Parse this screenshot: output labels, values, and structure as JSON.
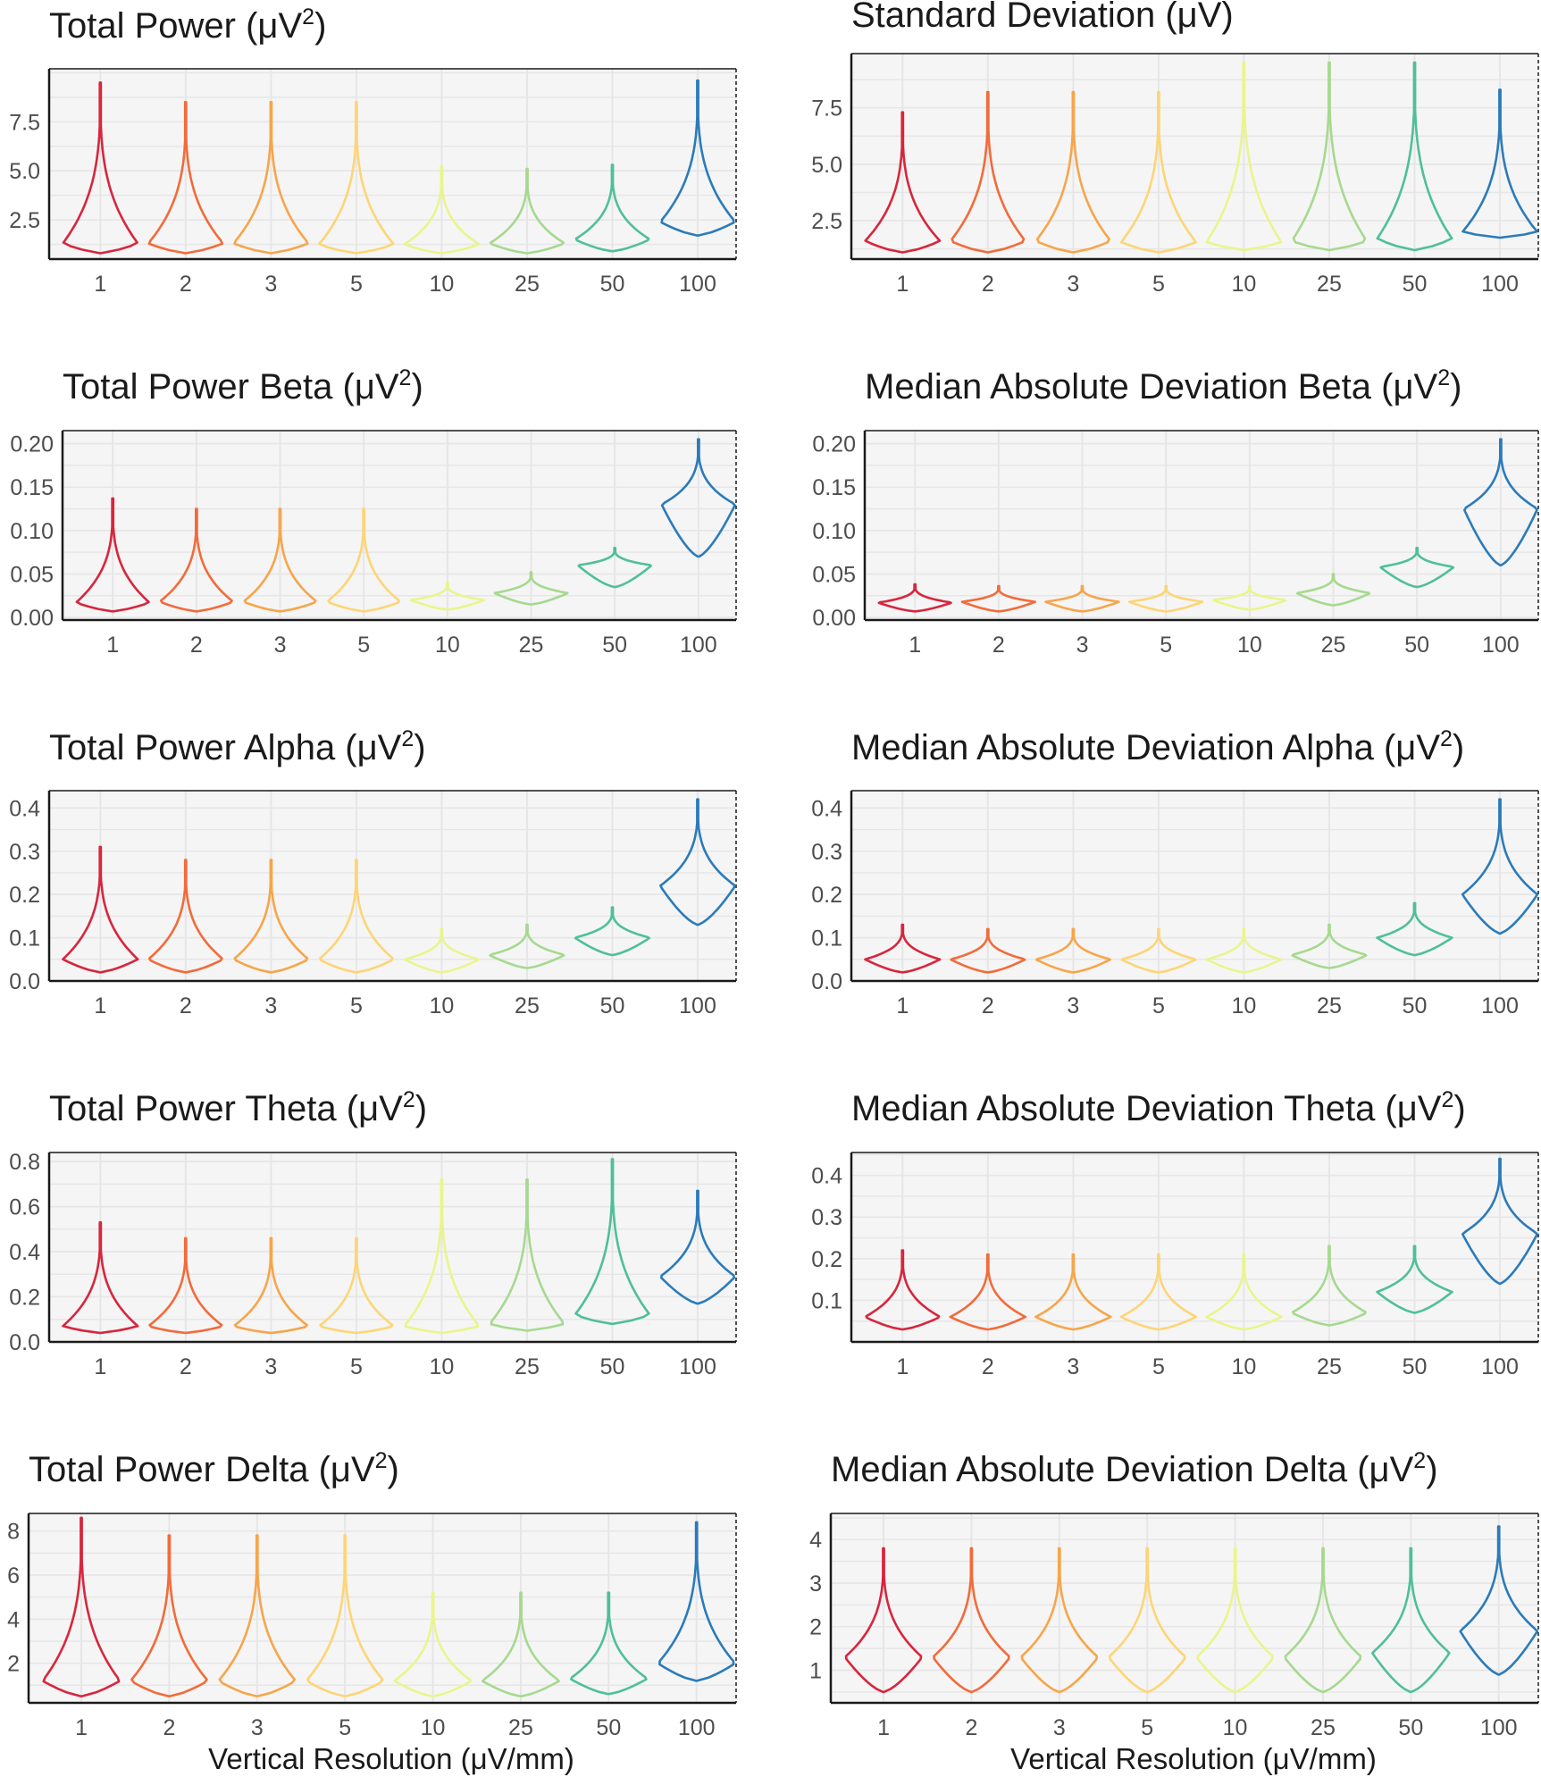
{
  "chart_data": [
    {
      "type": "violin",
      "title": "Total Power (μV²)",
      "title_text": "Total Power (μV",
      "title_sup": "2",
      "title_tail": ")",
      "xlabel": "",
      "categories": [
        "1",
        "2",
        "3",
        "5",
        "10",
        "25",
        "50",
        "100"
      ],
      "ylim": [
        0.5,
        10.2
      ],
      "yticks": [
        2.5,
        5.0,
        7.5
      ],
      "ytick_labels": [
        "2.5",
        "5.0",
        "7.5"
      ],
      "series": [
        {
          "min": 0.8,
          "max": 9.5,
          "median": 1.3
        },
        {
          "min": 0.8,
          "max": 8.5,
          "median": 1.3
        },
        {
          "min": 0.8,
          "max": 8.5,
          "median": 1.3
        },
        {
          "min": 0.8,
          "max": 8.5,
          "median": 1.25
        },
        {
          "min": 0.8,
          "max": 5.2,
          "median": 1.25
        },
        {
          "min": 0.8,
          "max": 5.1,
          "median": 1.3
        },
        {
          "min": 0.9,
          "max": 5.3,
          "median": 1.5
        },
        {
          "min": 1.7,
          "max": 9.6,
          "median": 2.4
        }
      ]
    },
    {
      "type": "violin",
      "title": "Standard Deviation (μV)",
      "title_text": "Standard Deviation (μV)",
      "title_sup": "",
      "title_tail": "",
      "xlabel": "",
      "categories": [
        "1",
        "2",
        "3",
        "5",
        "10",
        "25",
        "50",
        "100"
      ],
      "ylim": [
        0.8,
        9.9
      ],
      "yticks": [
        2.5,
        5.0,
        7.5
      ],
      "ytick_labels": [
        "2.5",
        "5.0",
        "7.5"
      ],
      "series": [
        {
          "min": 1.1,
          "max": 7.3,
          "median": 1.6
        },
        {
          "min": 1.1,
          "max": 8.2,
          "median": 1.6
        },
        {
          "min": 1.1,
          "max": 8.2,
          "median": 1.6
        },
        {
          "min": 1.1,
          "max": 8.2,
          "median": 1.55
        },
        {
          "min": 1.2,
          "max": 9.5,
          "median": 1.55
        },
        {
          "min": 1.2,
          "max": 9.5,
          "median": 1.6
        },
        {
          "min": 1.2,
          "max": 9.5,
          "median": 1.7
        },
        {
          "min": 1.75,
          "max": 8.3,
          "median": 2.0
        }
      ]
    },
    {
      "type": "violin",
      "title": "Total Power Beta (μV²)",
      "title_text": "Total Power Beta (μV",
      "title_sup": "2",
      "title_tail": ")",
      "xlabel": "",
      "categories": [
        "1",
        "2",
        "3",
        "5",
        "10",
        "25",
        "50",
        "100"
      ],
      "ylim": [
        -0.003,
        0.215
      ],
      "yticks": [
        0.0,
        0.05,
        0.1,
        0.15,
        0.2
      ],
      "ytick_labels": [
        "0.00",
        "0.05",
        "0.10",
        "0.15",
        "0.20"
      ],
      "series": [
        {
          "min": 0.007,
          "max": 0.137,
          "median": 0.017
        },
        {
          "min": 0.007,
          "max": 0.125,
          "median": 0.018
        },
        {
          "min": 0.007,
          "max": 0.125,
          "median": 0.018
        },
        {
          "min": 0.007,
          "max": 0.125,
          "median": 0.018
        },
        {
          "min": 0.009,
          "max": 0.04,
          "median": 0.02
        },
        {
          "min": 0.015,
          "max": 0.052,
          "median": 0.028
        },
        {
          "min": 0.035,
          "max": 0.08,
          "median": 0.06
        },
        {
          "min": 0.07,
          "max": 0.205,
          "median": 0.13
        }
      ]
    },
    {
      "type": "violin",
      "title": "Median Absolute Deviation Beta (μV²)",
      "title_text": "Median Absolute Deviation Beta (μV",
      "title_sup": "2",
      "title_tail": ")",
      "xlabel": "",
      "categories": [
        "1",
        "2",
        "3",
        "5",
        "10",
        "25",
        "50",
        "100"
      ],
      "ylim": [
        -0.003,
        0.215
      ],
      "yticks": [
        0.0,
        0.05,
        0.1,
        0.15,
        0.2
      ],
      "ytick_labels": [
        "0.00",
        "0.05",
        "0.10",
        "0.15",
        "0.20"
      ],
      "series": [
        {
          "min": 0.007,
          "max": 0.038,
          "median": 0.017
        },
        {
          "min": 0.007,
          "max": 0.036,
          "median": 0.018
        },
        {
          "min": 0.007,
          "max": 0.036,
          "median": 0.018
        },
        {
          "min": 0.007,
          "max": 0.036,
          "median": 0.018
        },
        {
          "min": 0.009,
          "max": 0.036,
          "median": 0.02
        },
        {
          "min": 0.014,
          "max": 0.05,
          "median": 0.028
        },
        {
          "min": 0.035,
          "max": 0.08,
          "median": 0.058
        },
        {
          "min": 0.06,
          "max": 0.205,
          "median": 0.125
        }
      ]
    },
    {
      "type": "violin",
      "title": "Total Power Alpha (μV²)",
      "title_text": "Total Power Alpha (μV",
      "title_sup": "2",
      "title_tail": ")",
      "xlabel": "",
      "categories": [
        "1",
        "2",
        "3",
        "5",
        "10",
        "25",
        "50",
        "100"
      ],
      "ylim": [
        0.0,
        0.44
      ],
      "yticks": [
        0.0,
        0.1,
        0.2,
        0.3,
        0.4
      ],
      "ytick_labels": [
        "0.0",
        "0.1",
        "0.2",
        "0.3",
        "0.4"
      ],
      "series": [
        {
          "min": 0.02,
          "max": 0.31,
          "median": 0.05
        },
        {
          "min": 0.02,
          "max": 0.28,
          "median": 0.05
        },
        {
          "min": 0.02,
          "max": 0.28,
          "median": 0.05
        },
        {
          "min": 0.02,
          "max": 0.28,
          "median": 0.05
        },
        {
          "min": 0.02,
          "max": 0.12,
          "median": 0.05
        },
        {
          "min": 0.03,
          "max": 0.13,
          "median": 0.06
        },
        {
          "min": 0.06,
          "max": 0.17,
          "median": 0.1
        },
        {
          "min": 0.13,
          "max": 0.42,
          "median": 0.22
        }
      ]
    },
    {
      "type": "violin",
      "title": "Median Absolute Deviation Alpha (μV²)",
      "title_text": "Median Absolute Deviation Alpha (μV",
      "title_sup": "2",
      "title_tail": ")",
      "xlabel": "",
      "categories": [
        "1",
        "2",
        "3",
        "5",
        "10",
        "25",
        "50",
        "100"
      ],
      "ylim": [
        0.0,
        0.44
      ],
      "yticks": [
        0.0,
        0.1,
        0.2,
        0.3,
        0.4
      ],
      "ytick_labels": [
        "0.0",
        "0.1",
        "0.2",
        "0.3",
        "0.4"
      ],
      "series": [
        {
          "min": 0.02,
          "max": 0.13,
          "median": 0.05
        },
        {
          "min": 0.02,
          "max": 0.12,
          "median": 0.05
        },
        {
          "min": 0.02,
          "max": 0.12,
          "median": 0.05
        },
        {
          "min": 0.02,
          "max": 0.12,
          "median": 0.05
        },
        {
          "min": 0.02,
          "max": 0.12,
          "median": 0.05
        },
        {
          "min": 0.03,
          "max": 0.13,
          "median": 0.06
        },
        {
          "min": 0.06,
          "max": 0.18,
          "median": 0.1
        },
        {
          "min": 0.11,
          "max": 0.42,
          "median": 0.2
        }
      ]
    },
    {
      "type": "violin",
      "title": "Total Power Theta (μV²)",
      "title_text": "Total Power Theta (μV",
      "title_sup": "2",
      "title_tail": ")",
      "xlabel": "",
      "categories": [
        "1",
        "2",
        "3",
        "5",
        "10",
        "25",
        "50",
        "100"
      ],
      "ylim": [
        0.0,
        0.84
      ],
      "yticks": [
        0.0,
        0.2,
        0.4,
        0.6,
        0.8
      ],
      "ytick_labels": [
        "0.0",
        "0.2",
        "0.4",
        "0.6",
        "0.8"
      ],
      "series": [
        {
          "min": 0.04,
          "max": 0.53,
          "median": 0.07
        },
        {
          "min": 0.04,
          "max": 0.46,
          "median": 0.07
        },
        {
          "min": 0.04,
          "max": 0.46,
          "median": 0.07
        },
        {
          "min": 0.04,
          "max": 0.46,
          "median": 0.07
        },
        {
          "min": 0.04,
          "max": 0.72,
          "median": 0.07
        },
        {
          "min": 0.05,
          "max": 0.72,
          "median": 0.08
        },
        {
          "min": 0.08,
          "max": 0.81,
          "median": 0.12
        },
        {
          "min": 0.17,
          "max": 0.67,
          "median": 0.29
        }
      ]
    },
    {
      "type": "violin",
      "title": "Median Absolute Deviation Theta (μV²)",
      "title_text": "Median Absolute Deviation Theta (μV",
      "title_sup": "2",
      "title_tail": ")",
      "xlabel": "",
      "categories": [
        "1",
        "2",
        "3",
        "5",
        "10",
        "25",
        "50",
        "100"
      ],
      "ylim": [
        0.0,
        0.455
      ],
      "yticks": [
        0.1,
        0.2,
        0.3,
        0.4
      ],
      "ytick_labels": [
        "0.1",
        "0.2",
        "0.3",
        "0.4"
      ],
      "series": [
        {
          "min": 0.03,
          "max": 0.22,
          "median": 0.06
        },
        {
          "min": 0.03,
          "max": 0.21,
          "median": 0.06
        },
        {
          "min": 0.03,
          "max": 0.21,
          "median": 0.06
        },
        {
          "min": 0.03,
          "max": 0.21,
          "median": 0.06
        },
        {
          "min": 0.03,
          "max": 0.21,
          "median": 0.06
        },
        {
          "min": 0.04,
          "max": 0.23,
          "median": 0.07
        },
        {
          "min": 0.07,
          "max": 0.23,
          "median": 0.12
        },
        {
          "min": 0.14,
          "max": 0.44,
          "median": 0.26
        }
      ]
    },
    {
      "type": "violin",
      "title": "Total Power Delta (μV²)",
      "title_text": "Total Power Delta (μV",
      "title_sup": "2",
      "title_tail": ")",
      "xlabel": "Vertical Resolution (μV/mm)",
      "categories": [
        "1",
        "2",
        "3",
        "5",
        "10",
        "25",
        "50",
        "100"
      ],
      "ylim": [
        0.2,
        8.8
      ],
      "yticks": [
        2,
        4,
        6,
        8
      ],
      "ytick_labels": [
        "2",
        "4",
        "6",
        "8"
      ],
      "series": [
        {
          "min": 0.5,
          "max": 8.6,
          "median": 1.2
        },
        {
          "min": 0.5,
          "max": 7.8,
          "median": 1.2
        },
        {
          "min": 0.5,
          "max": 7.8,
          "median": 1.2
        },
        {
          "min": 0.5,
          "max": 7.8,
          "median": 1.2
        },
        {
          "min": 0.5,
          "max": 5.2,
          "median": 1.2
        },
        {
          "min": 0.5,
          "max": 5.2,
          "median": 1.2
        },
        {
          "min": 0.6,
          "max": 5.2,
          "median": 1.3
        },
        {
          "min": 1.2,
          "max": 8.4,
          "median": 2.0
        }
      ]
    },
    {
      "type": "violin",
      "title": "Median Absolute Deviation Delta (μV²)",
      "title_text": "Median Absolute Deviation Delta (μV",
      "title_sup": "2",
      "title_tail": ")",
      "xlabel": "Vertical Resolution (μV/mm)",
      "categories": [
        "1",
        "2",
        "3",
        "5",
        "10",
        "25",
        "50",
        "100"
      ],
      "ylim": [
        0.25,
        4.6
      ],
      "yticks": [
        1,
        2,
        3,
        4
      ],
      "ytick_labels": [
        "1",
        "2",
        "3",
        "4"
      ],
      "series": [
        {
          "min": 0.5,
          "max": 3.8,
          "median": 1.3
        },
        {
          "min": 0.5,
          "max": 3.8,
          "median": 1.3
        },
        {
          "min": 0.5,
          "max": 3.8,
          "median": 1.3
        },
        {
          "min": 0.5,
          "max": 3.8,
          "median": 1.3
        },
        {
          "min": 0.5,
          "max": 3.8,
          "median": 1.3
        },
        {
          "min": 0.5,
          "max": 3.8,
          "median": 1.3
        },
        {
          "min": 0.5,
          "max": 3.8,
          "median": 1.4
        },
        {
          "min": 0.9,
          "max": 4.3,
          "median": 1.9
        }
      ]
    }
  ],
  "series_colors": [
    "#d7263d",
    "#f26b3a",
    "#f7a54a",
    "#fdd575",
    "#e9f58c",
    "#a6d98f",
    "#4fbf9a",
    "#2b7bba"
  ],
  "panel_background": "#f5f5f5",
  "grid_color": "#e6e6e6"
}
